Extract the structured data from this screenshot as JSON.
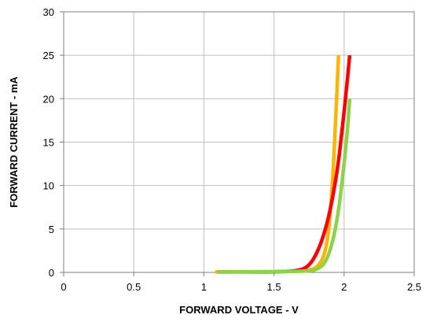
{
  "chart_data": {
    "type": "line",
    "title": "",
    "xlabel": "FORWARD VOLTAGE - V",
    "ylabel": "FORWARD CURRENT - mA",
    "xlim": [
      0,
      2.5
    ],
    "ylim": [
      0,
      30
    ],
    "x_ticks": [
      "0",
      "0.5",
      "1",
      "1.5",
      "2",
      "2.5"
    ],
    "y_ticks": [
      "0",
      "5",
      "10",
      "15",
      "20",
      "25",
      "30"
    ],
    "grid": true,
    "legend": "none",
    "series": [
      {
        "color": "#FFB400",
        "x": [
          1.08,
          1.3,
          1.5,
          1.65,
          1.75,
          1.8,
          1.85,
          1.88,
          1.9,
          1.92,
          1.94,
          1.96
        ],
        "y": [
          0.05,
          0.05,
          0.08,
          0.12,
          0.25,
          0.5,
          1.5,
          3.5,
          6.5,
          11,
          17.5,
          25
        ]
      },
      {
        "color": "#FF0000",
        "x": [
          1.1,
          1.4,
          1.6,
          1.7,
          1.75,
          1.8,
          1.85,
          1.9,
          1.95,
          1.98,
          2.01,
          2.04
        ],
        "y": [
          0.05,
          0.05,
          0.1,
          0.3,
          0.8,
          2.0,
          4.0,
          7.0,
          11.5,
          15.5,
          20,
          25
        ]
      },
      {
        "color": "#8CD24B",
        "x": [
          1.1,
          1.4,
          1.6,
          1.75,
          1.82,
          1.87,
          1.92,
          1.96,
          1.99,
          2.02,
          2.04
        ],
        "y": [
          0.05,
          0.08,
          0.1,
          0.15,
          0.4,
          1.2,
          3.5,
          7.0,
          11.0,
          15.5,
          20
        ]
      }
    ]
  }
}
